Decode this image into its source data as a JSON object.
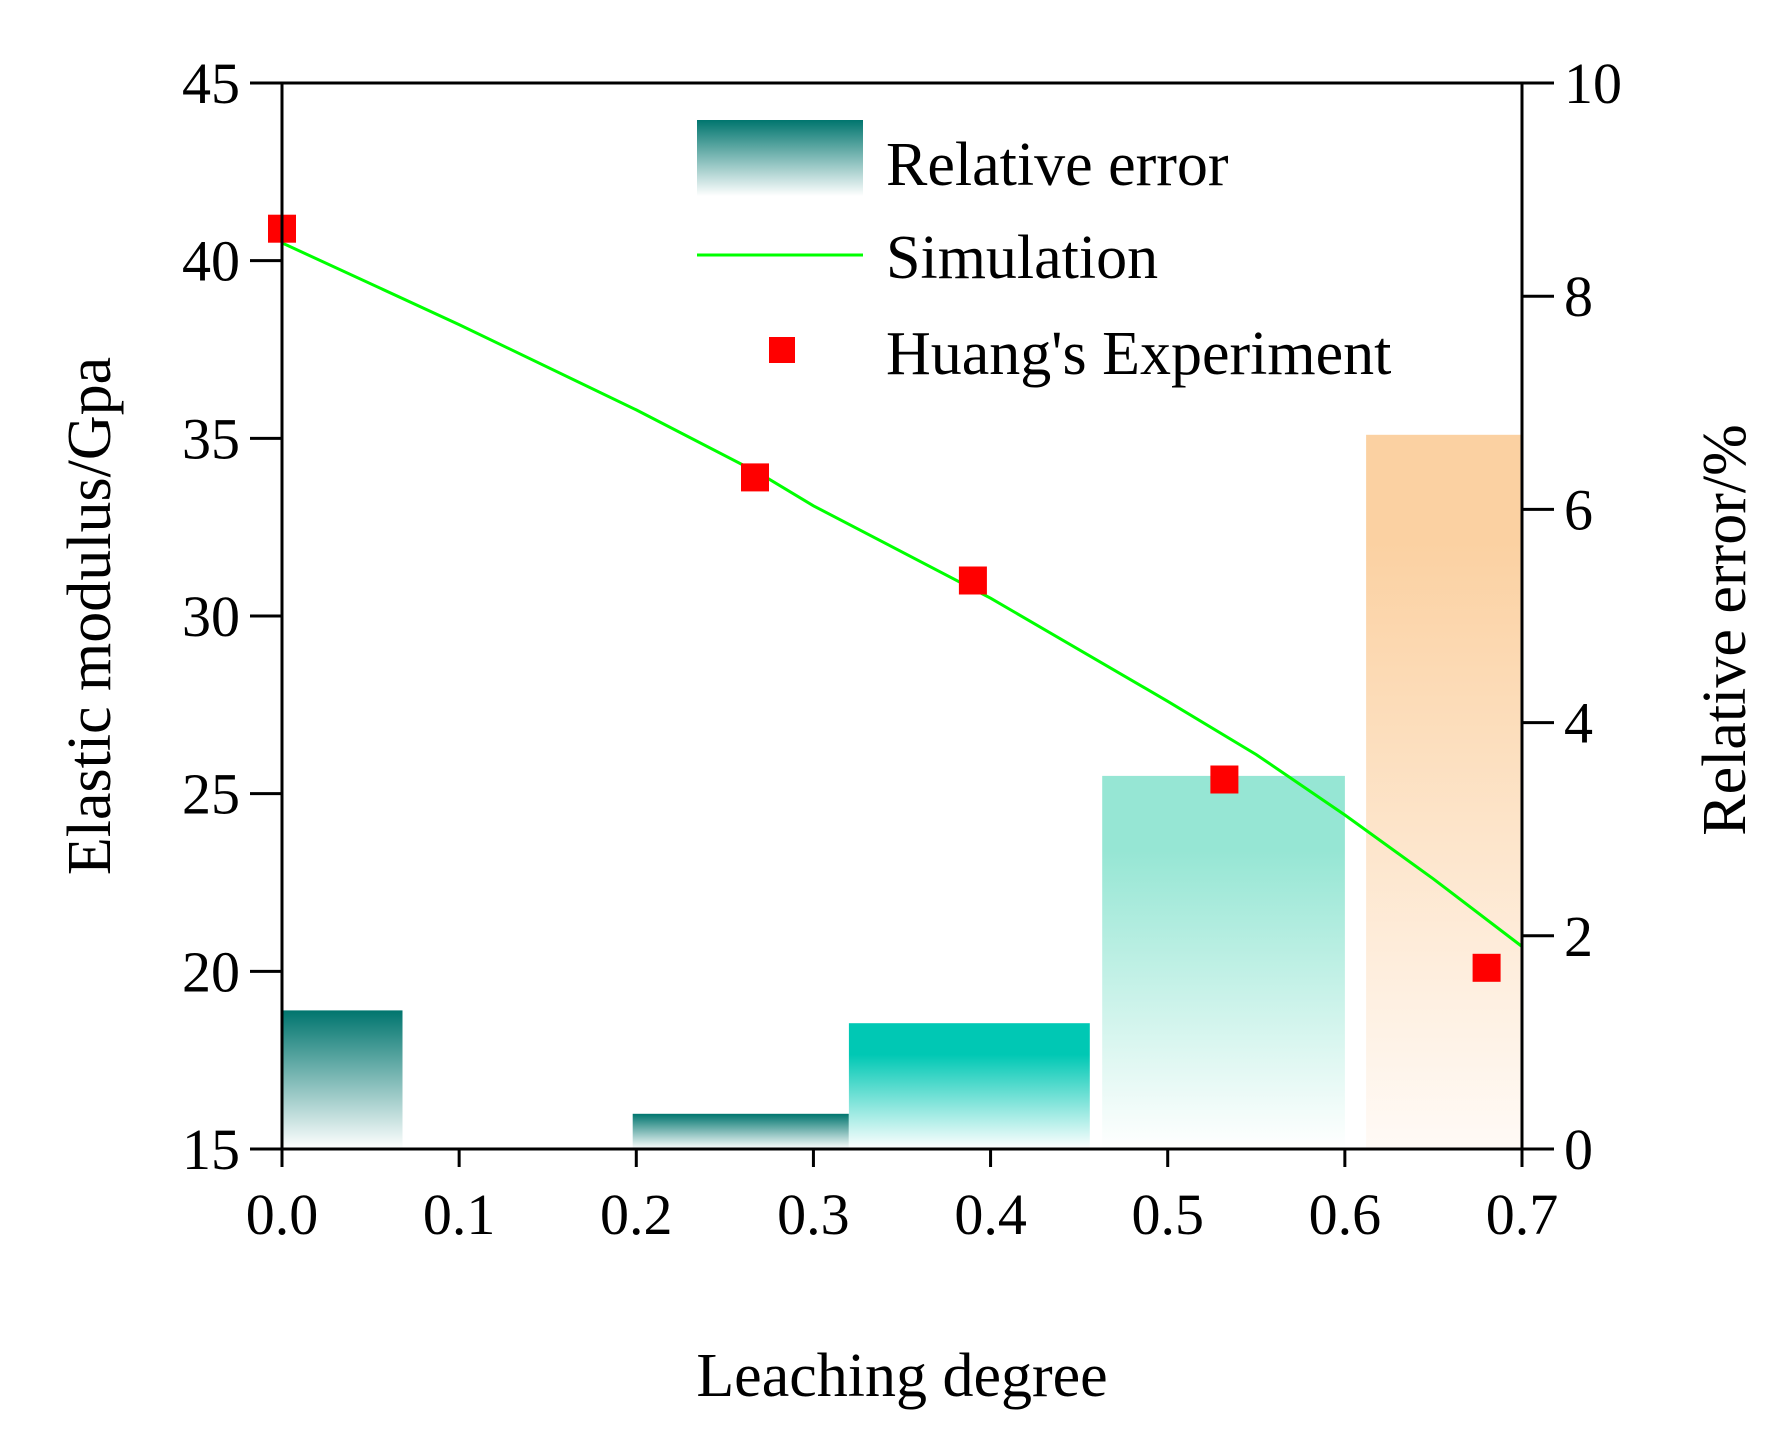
{
  "chart_data": {
    "type": "bar",
    "xlabel": "Leaching degree",
    "ylabel": "Elastic modulus/Gpa",
    "y2label": "Relative error/%",
    "xlim": [
      0.0,
      0.7
    ],
    "ylim": [
      15,
      45
    ],
    "y2lim": [
      0,
      10
    ],
    "xticks": [
      "0.0",
      "0.1",
      "0.2",
      "0.3",
      "0.4",
      "0.5",
      "0.6",
      "0.7"
    ],
    "yticks": [
      "15",
      "20",
      "25",
      "30",
      "35",
      "40",
      "45"
    ],
    "y2ticks": [
      "0",
      "2",
      "4",
      "6",
      "8",
      "10"
    ],
    "legend_position": "top-right",
    "series": [
      {
        "name": "Relative error",
        "type": "bar",
        "axis": "right",
        "bars": [
          {
            "x0": 0.0,
            "x1": 0.068,
            "value": 1.3,
            "color": "#00756e"
          },
          {
            "x0": 0.198,
            "x1": 0.32,
            "value": 0.33,
            "color": "#00756e"
          },
          {
            "x0": 0.32,
            "x1": 0.456,
            "value": 1.18,
            "color": "#00c8b4"
          },
          {
            "x0": 0.463,
            "x1": 0.6,
            "value": 3.5,
            "color": "#96e6d4"
          },
          {
            "x0": 0.612,
            "x1": 0.7,
            "value": 6.7,
            "color": "#fbd1a2"
          }
        ]
      },
      {
        "name": "Simulation",
        "type": "line",
        "axis": "left",
        "color": "#00ff00",
        "x": [
          0.0,
          0.1,
          0.2,
          0.27,
          0.3,
          0.4,
          0.5,
          0.55,
          0.6,
          0.65,
          0.7
        ],
        "y": [
          40.5,
          38.2,
          35.8,
          34.0,
          33.1,
          30.5,
          27.6,
          26.1,
          24.4,
          22.6,
          20.7
        ]
      },
      {
        "name": "Huang's Experiment",
        "type": "scatter",
        "axis": "left",
        "color": "#ff0000",
        "x": [
          0.0,
          0.267,
          0.39,
          0.532,
          0.68
        ],
        "y": [
          40.9,
          33.9,
          31.0,
          25.4,
          20.1
        ]
      }
    ]
  }
}
